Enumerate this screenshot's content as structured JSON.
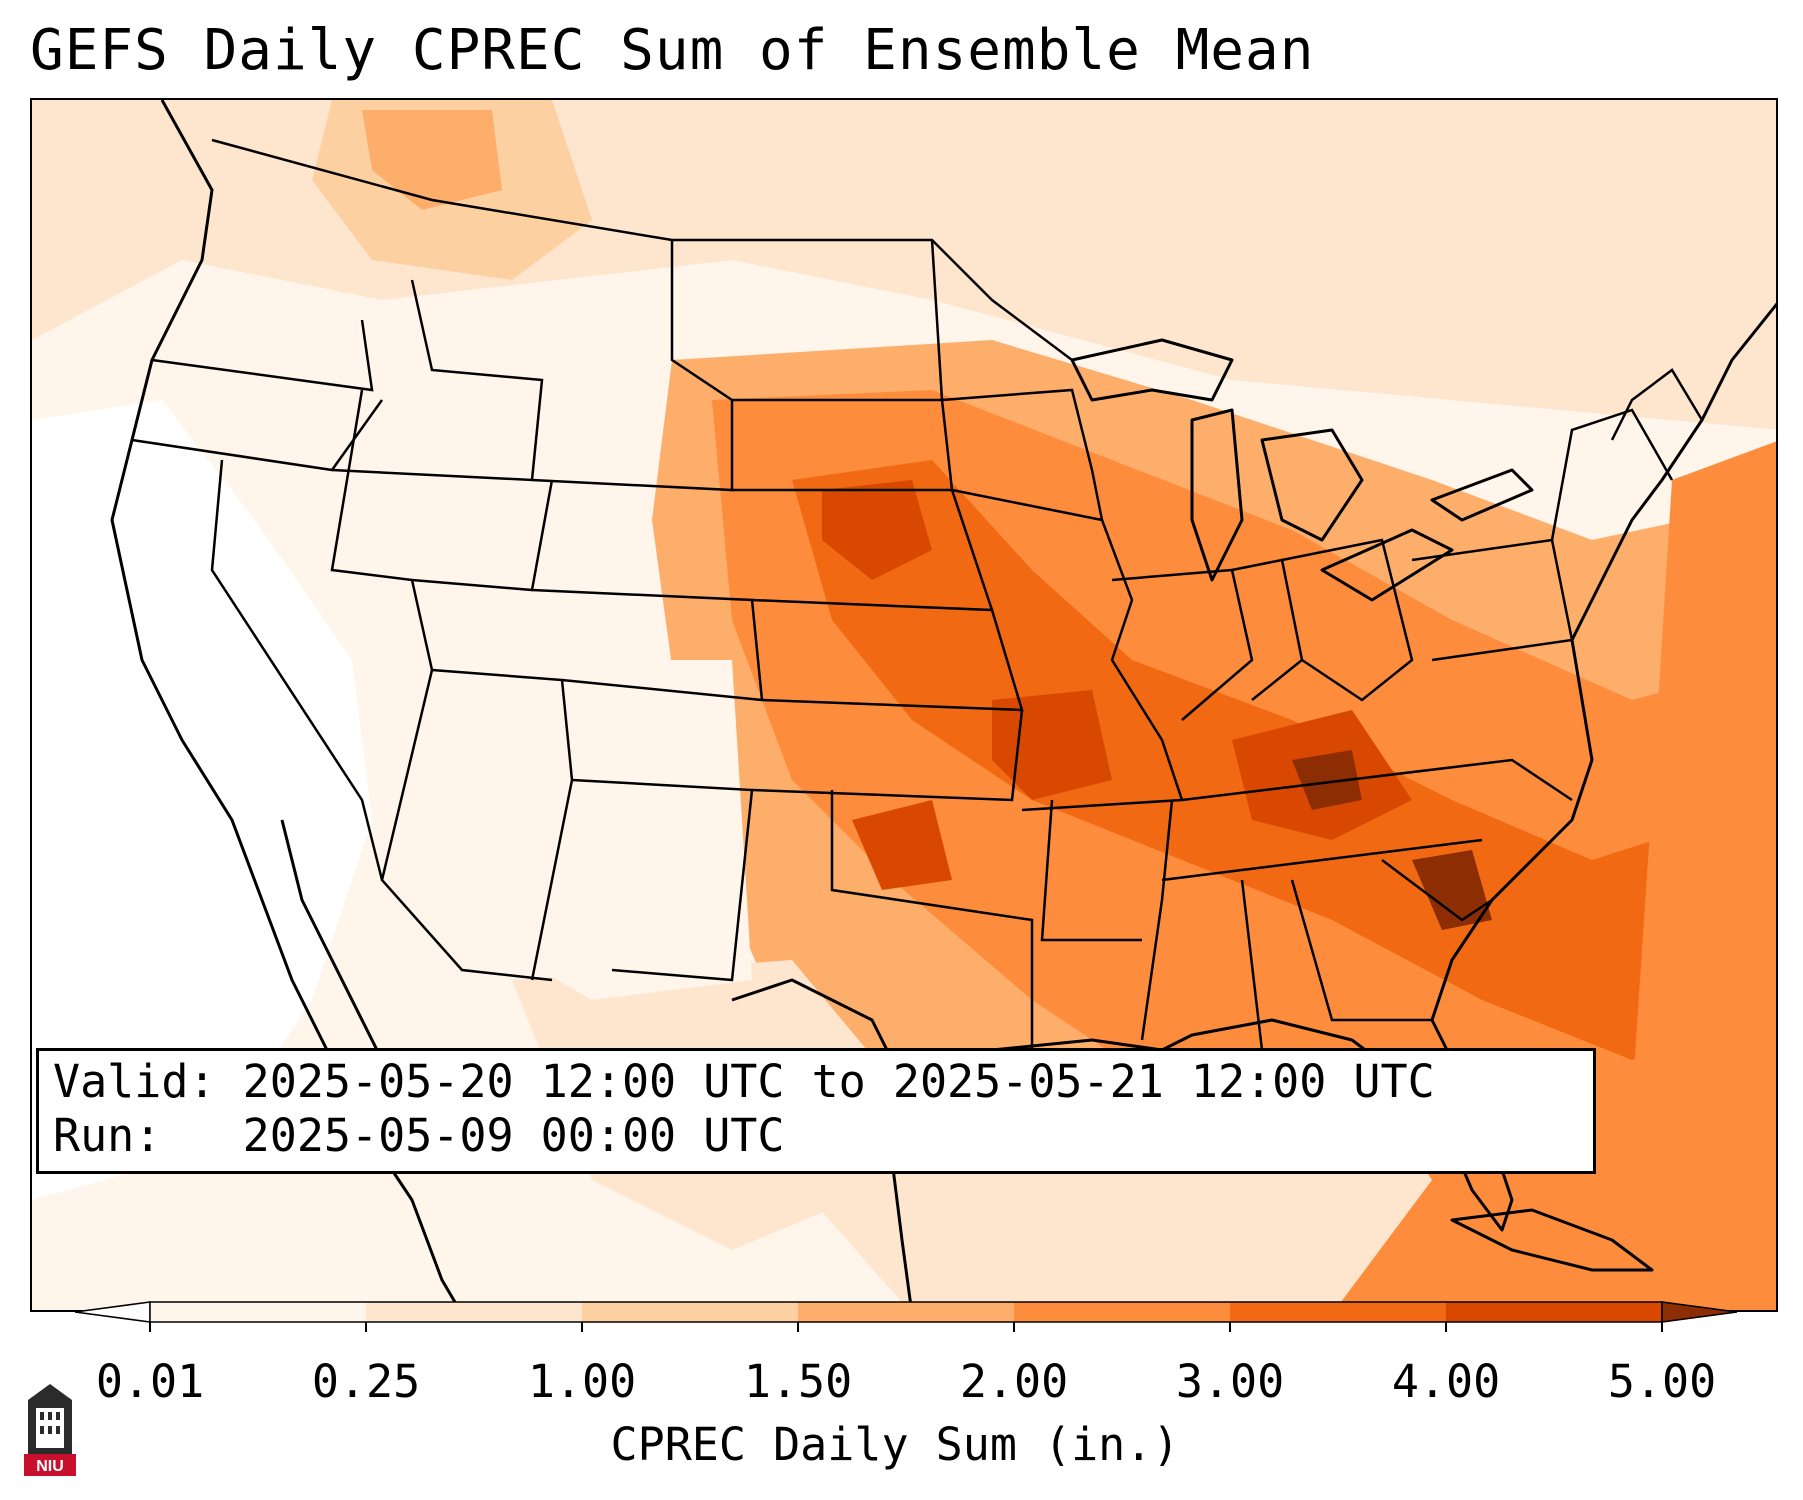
{
  "title": "GEFS Daily CPREC Sum of Ensemble Mean",
  "info": {
    "valid_line": "Valid: 2025-05-20 12:00 UTC to 2025-05-21 12:00 UTC",
    "run_line": "Run:   2025-05-09 00:00 UTC"
  },
  "colorbar": {
    "label": "CPREC Daily Sum (in.)",
    "ticks": [
      "0.01",
      "0.25",
      "1.00",
      "1.50",
      "2.00",
      "3.00",
      "4.00",
      "5.00"
    ],
    "colors": [
      "#fff5eb",
      "#fee6ce",
      "#fdd0a2",
      "#fdae6b",
      "#fd8d3c",
      "#f16913",
      "#d94801",
      "#8c2d04"
    ],
    "extend_low_color": "#ffffff",
    "extend_high_color": "#8c2d04"
  },
  "logo": {
    "text": "NIU",
    "icon": "university-tower-icon",
    "colors": {
      "tower": "#2b2b2b",
      "badge": "#c8102e"
    }
  },
  "map_colors": {
    "state_lines": "#000000",
    "background": "#ffffff"
  }
}
